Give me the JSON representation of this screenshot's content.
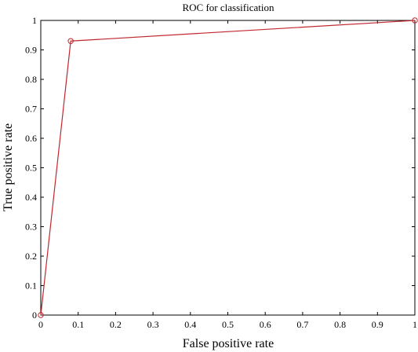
{
  "chart_data": {
    "type": "line",
    "title": "ROC for classification",
    "xlabel": "False positive rate",
    "ylabel": "True positive rate",
    "xlim": [
      0,
      1
    ],
    "ylim": [
      0,
      1
    ],
    "xticks": [
      "0",
      "0.1",
      "0.2",
      "0.3",
      "0.4",
      "0.5",
      "0.6",
      "0.7",
      "0.8",
      "0.9",
      "1"
    ],
    "yticks": [
      "0",
      "0.1",
      "0.2",
      "0.3",
      "0.4",
      "0.5",
      "0.6",
      "0.7",
      "0.8",
      "0.9",
      "1"
    ],
    "grid": false,
    "series": [
      {
        "x": [
          0,
          0.08,
          1
        ],
        "y": [
          0,
          0.93,
          1
        ],
        "color": "#c0272d",
        "marker": "circle"
      }
    ]
  }
}
